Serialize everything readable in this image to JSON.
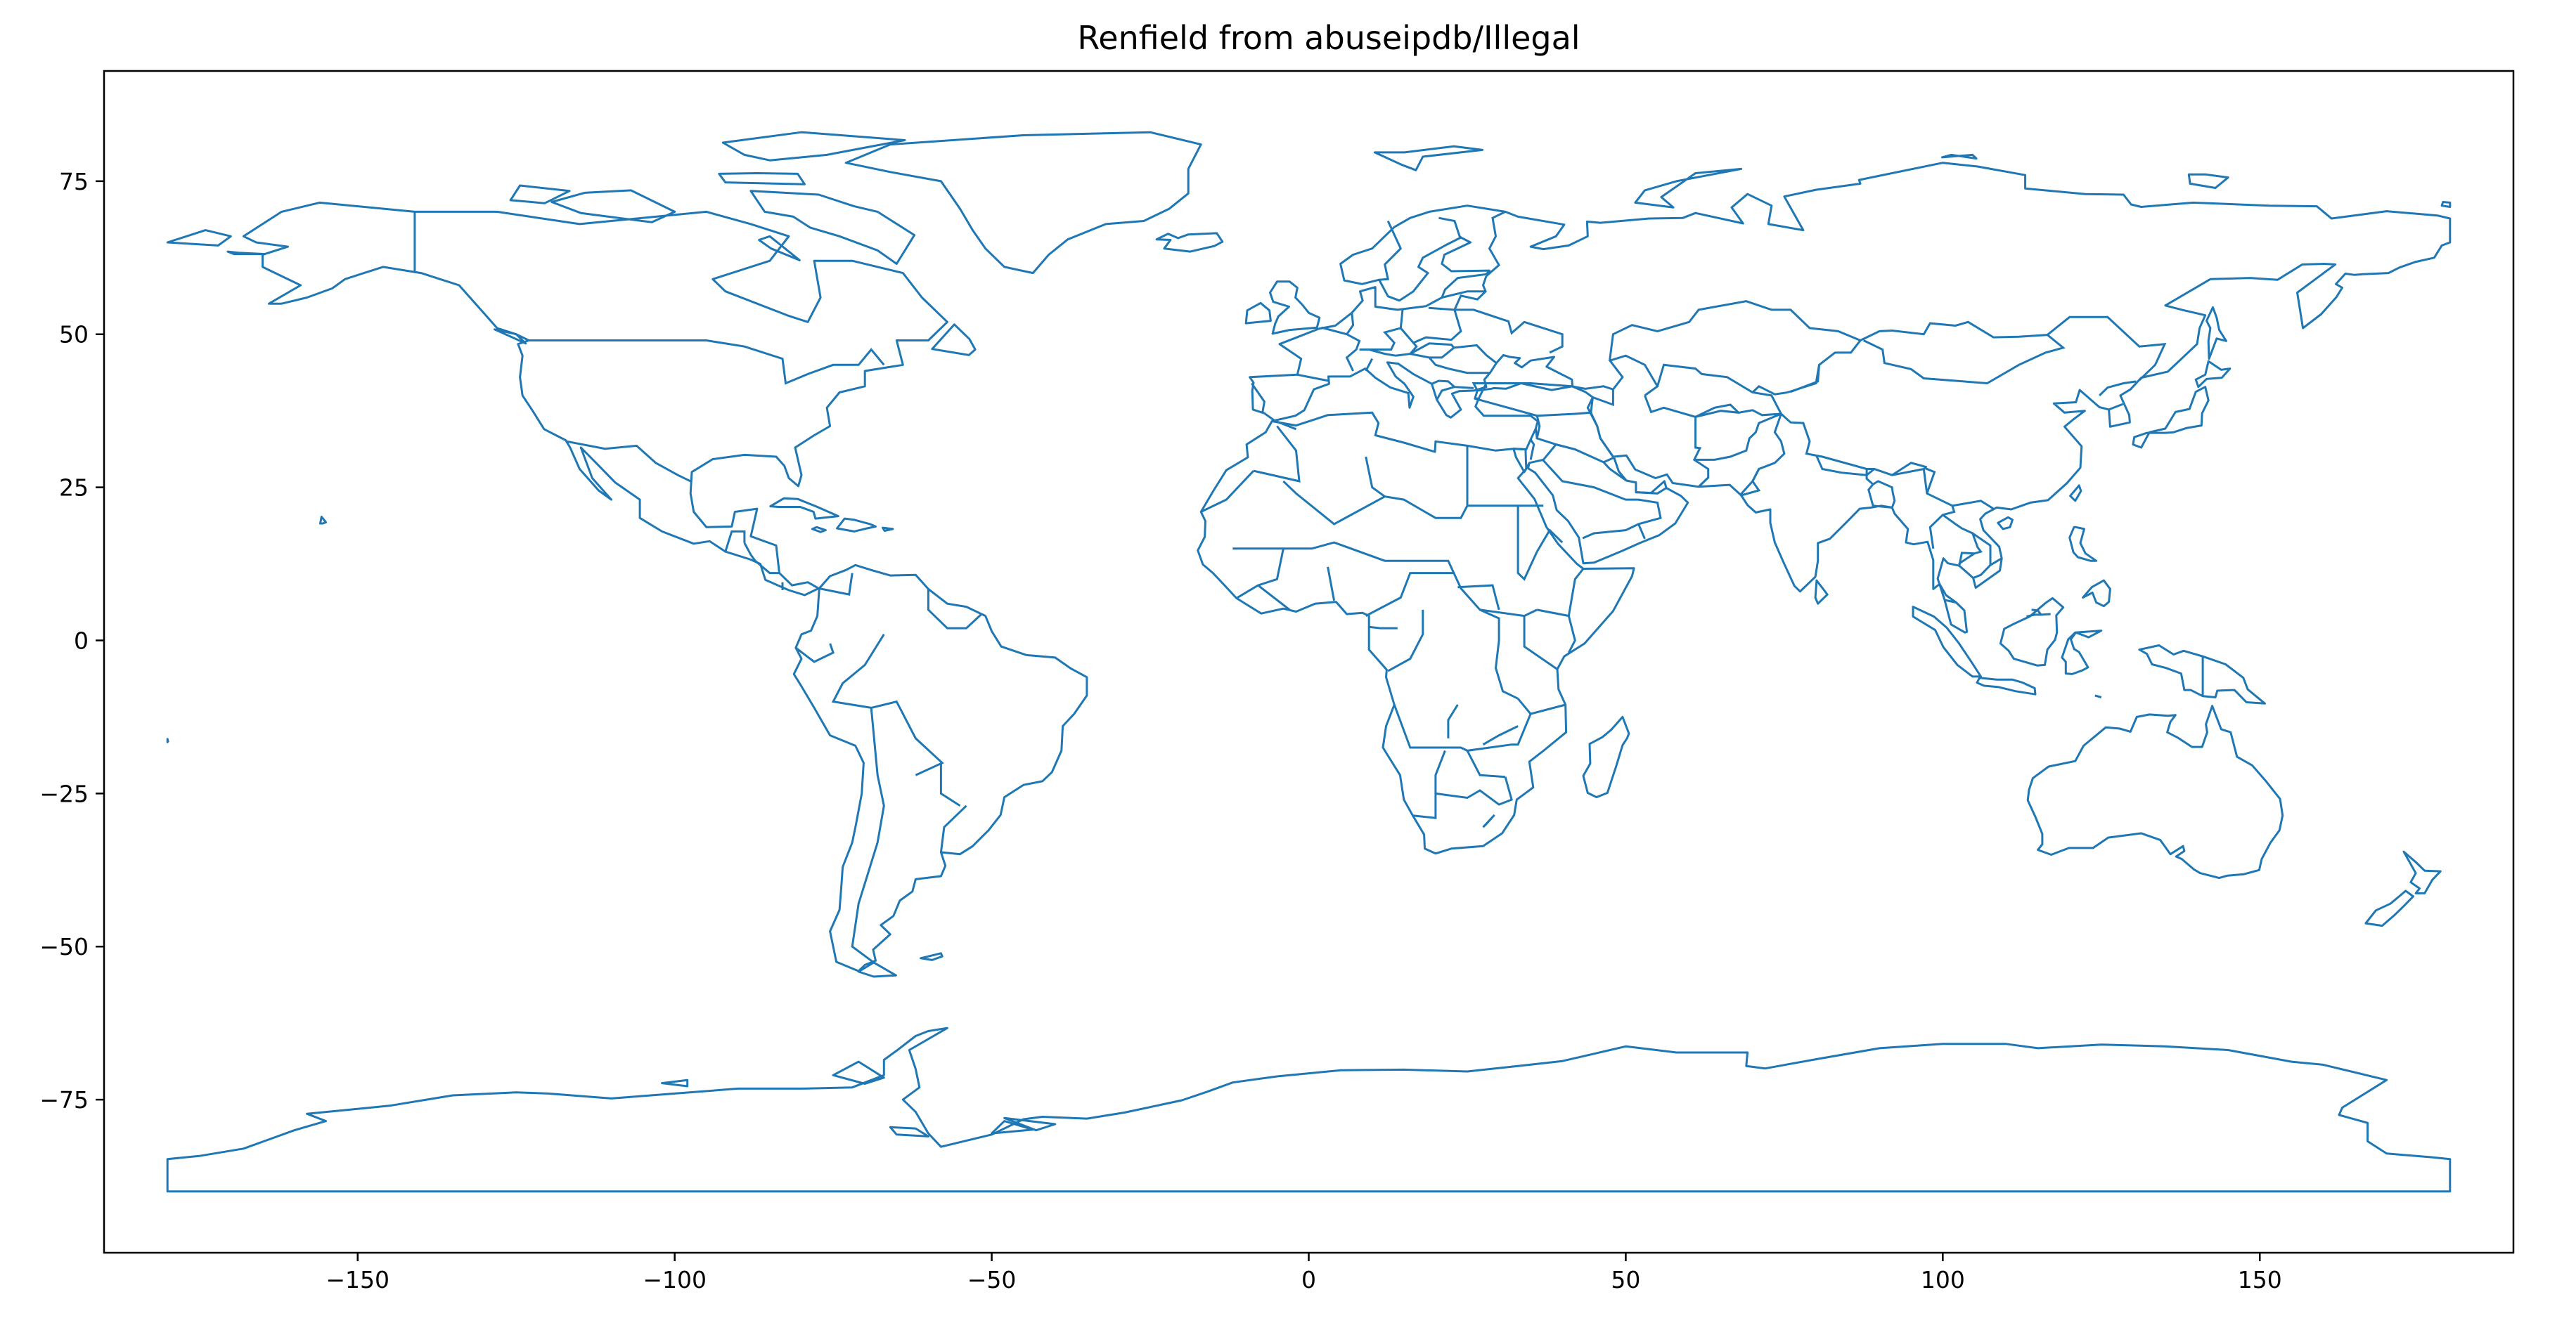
{
  "chart_data": {
    "type": "map",
    "title": "Renfield from abuseipdb/Illegal",
    "xlabel": "",
    "ylabel": "",
    "xlim": [
      -190,
      190
    ],
    "ylim": [
      -100,
      93
    ],
    "xticks": [
      -150,
      -100,
      -50,
      0,
      50,
      100,
      150
    ],
    "yticks": [
      75,
      50,
      25,
      0,
      -25,
      -50,
      -75
    ],
    "xtick_labels": [
      "−150",
      "−100",
      "−50",
      "0",
      "50",
      "100",
      "150"
    ],
    "ytick_labels": [
      "75",
      "50",
      "25",
      "0",
      "−25",
      "−50",
      "−75"
    ],
    "grid": false,
    "line_color": "#1f77b4",
    "layer": "world country boundaries (outline only, no fill)"
  }
}
